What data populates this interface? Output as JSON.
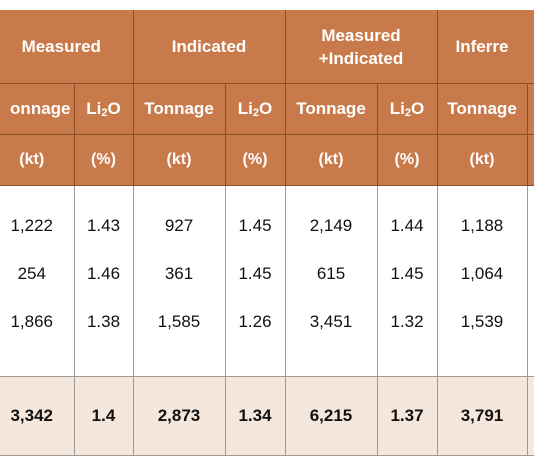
{
  "header": {
    "groups": [
      "Measured",
      "Indicated",
      "Measured",
      "+Indicated",
      "Inferre"
    ],
    "sub_labels": [
      "onnage",
      "Li",
      "2",
      "O",
      "Tonnage",
      "Li",
      "2",
      "O",
      "Tonnage",
      "Li",
      "2",
      "O",
      "Tonnage"
    ],
    "units": [
      "(kt)",
      "(%)",
      "(kt)",
      "(%)",
      "(kt)",
      "(%)",
      "(kt)"
    ]
  },
  "rows": [
    [
      "1,222",
      "1.43",
      "927",
      "1.45",
      "2,149",
      "1.44",
      "1,188"
    ],
    [
      "254",
      "1.46",
      "361",
      "1.45",
      "615",
      "1.45",
      "1,064"
    ],
    [
      "1,866",
      "1.38",
      "1,585",
      "1.26",
      "3,451",
      "1.32",
      "1,539"
    ]
  ],
  "total": [
    "3,342",
    "1.4",
    "2,873",
    "1.34",
    "6,215",
    "1.37",
    "3,791"
  ]
}
